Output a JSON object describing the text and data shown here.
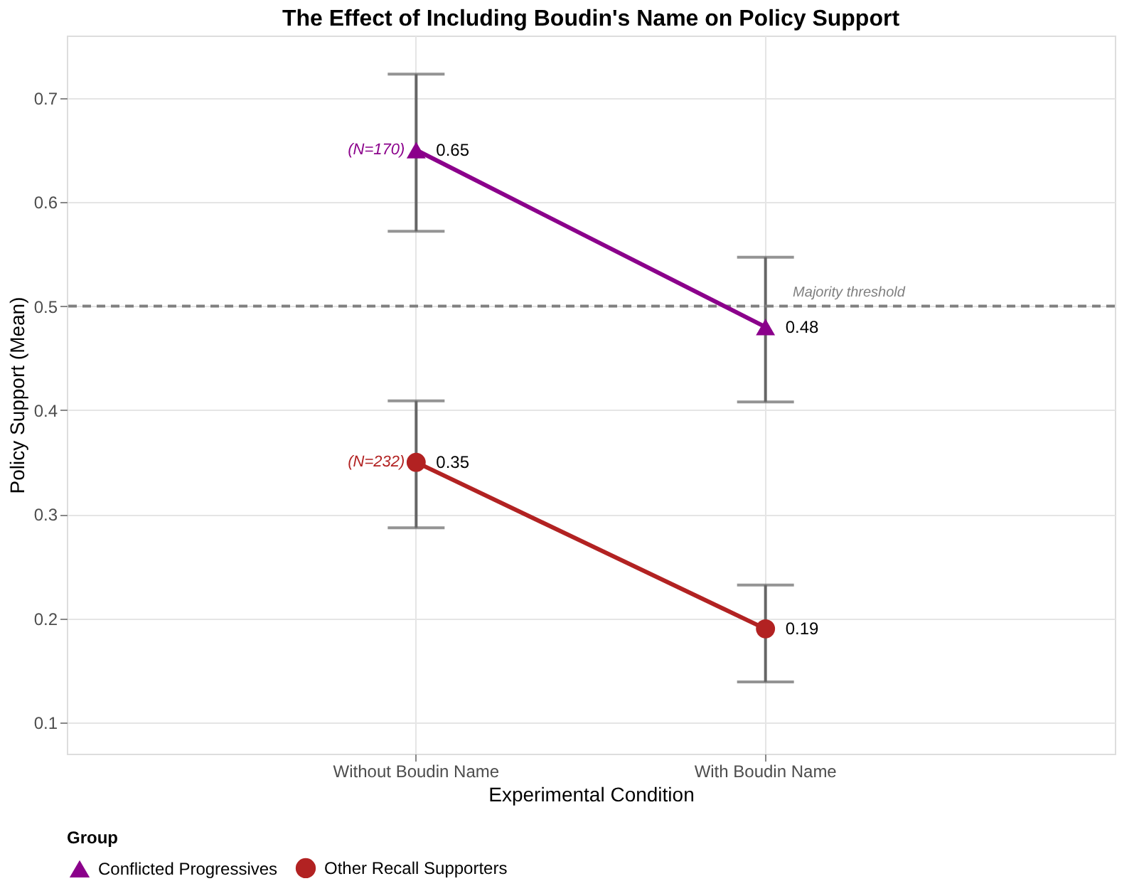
{
  "chart_data": {
    "type": "line",
    "title": "The Effect of Including Boudin's Name on Policy Support",
    "xlabel": "Experimental Condition",
    "ylabel": "Policy Support (Mean)",
    "legend_title": "Group",
    "categories": [
      "Without Boudin Name",
      "With Boudin Name"
    ],
    "series": [
      {
        "name": "Conflicted Progressives",
        "color": "#8b008b",
        "marker": "triangle",
        "values": [
          0.65,
          0.48
        ],
        "errors": [
          [
            0.572,
            0.723
          ],
          [
            0.408,
            0.547
          ]
        ]
      },
      {
        "name": "Other Recall Supporters",
        "color": "#b22222",
        "marker": "circle",
        "values": [
          0.35,
          0.19
        ],
        "errors": [
          [
            0.287,
            0.409
          ],
          [
            0.139,
            0.232
          ]
        ]
      }
    ],
    "ylim": [
      0.07,
      0.76
    ],
    "yticks": [
      0.1,
      0.2,
      0.3,
      0.4,
      0.5,
      0.6,
      0.7
    ],
    "ref_lines": [
      {
        "axis": "y",
        "value": 0.5,
        "label": "Majority threshold",
        "color": "#808080",
        "line_style": "dashed"
      }
    ],
    "annotations": [
      {
        "text": "(N=170)",
        "x": "Without Boudin Name",
        "y": 0.65
      },
      {
        "text": "(N=232)",
        "x": "Without Boudin Name",
        "y": 0.35
      }
    ],
    "data_labels": true,
    "grid": true,
    "legend": "bottom",
    "line_style": "solid"
  }
}
